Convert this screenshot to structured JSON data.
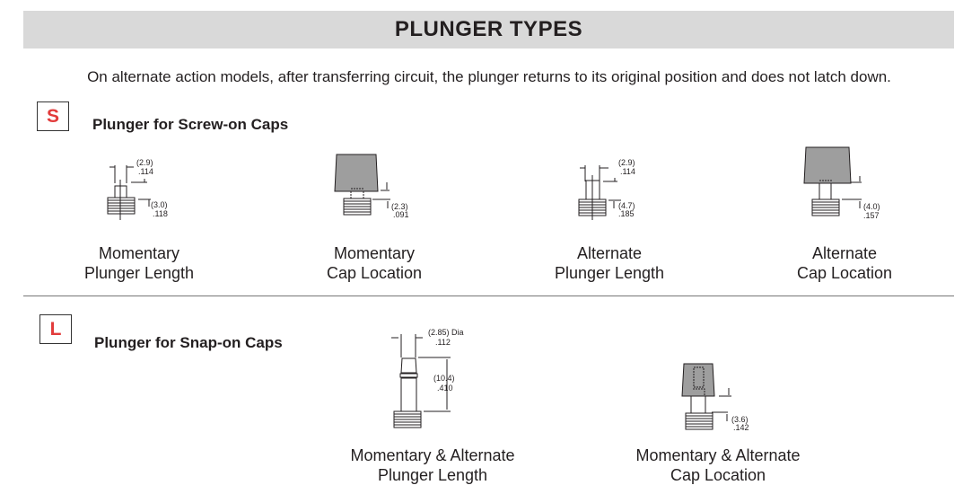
{
  "title": "PLUNGER TYPES",
  "intro": "On alternate action models, after transferring circuit, the plunger returns to its original position and does not latch down.",
  "sections": [
    {
      "code": "S",
      "heading": "Plunger for Screw-on Caps",
      "items": [
        {
          "line1": "Momentary",
          "line2": "Plunger Length",
          "dims": [
            "(2.9)",
            ".114",
            "(3.0)",
            ".118"
          ]
        },
        {
          "line1": "Momentary",
          "line2": "Cap Location",
          "dims": [
            "(2.3)",
            ".091"
          ]
        },
        {
          "line1": "Alternate",
          "line2": "Plunger Length",
          "dims": [
            "(2.9)",
            ".114",
            "(4.7)",
            ".185"
          ]
        },
        {
          "line1": "Alternate",
          "line2": "Cap Location",
          "dims": [
            "(4.0)",
            ".157"
          ]
        }
      ]
    },
    {
      "code": "L",
      "heading": "Plunger for Snap-on Caps",
      "items": [
        {
          "line1": "Momentary & Alternate",
          "line2": "Plunger Length",
          "dims": [
            "(2.85) Dia",
            ".112",
            "(10.4)",
            ".410"
          ]
        },
        {
          "line1": "Momentary & Alternate",
          "line2": "Cap Location",
          "dims": [
            "(3.6)",
            ".142"
          ]
        }
      ]
    }
  ],
  "colors": {
    "badge_letter": "#e23b3b",
    "banner": "#d9d9d9",
    "cap_fill": "#9e9e9e"
  }
}
